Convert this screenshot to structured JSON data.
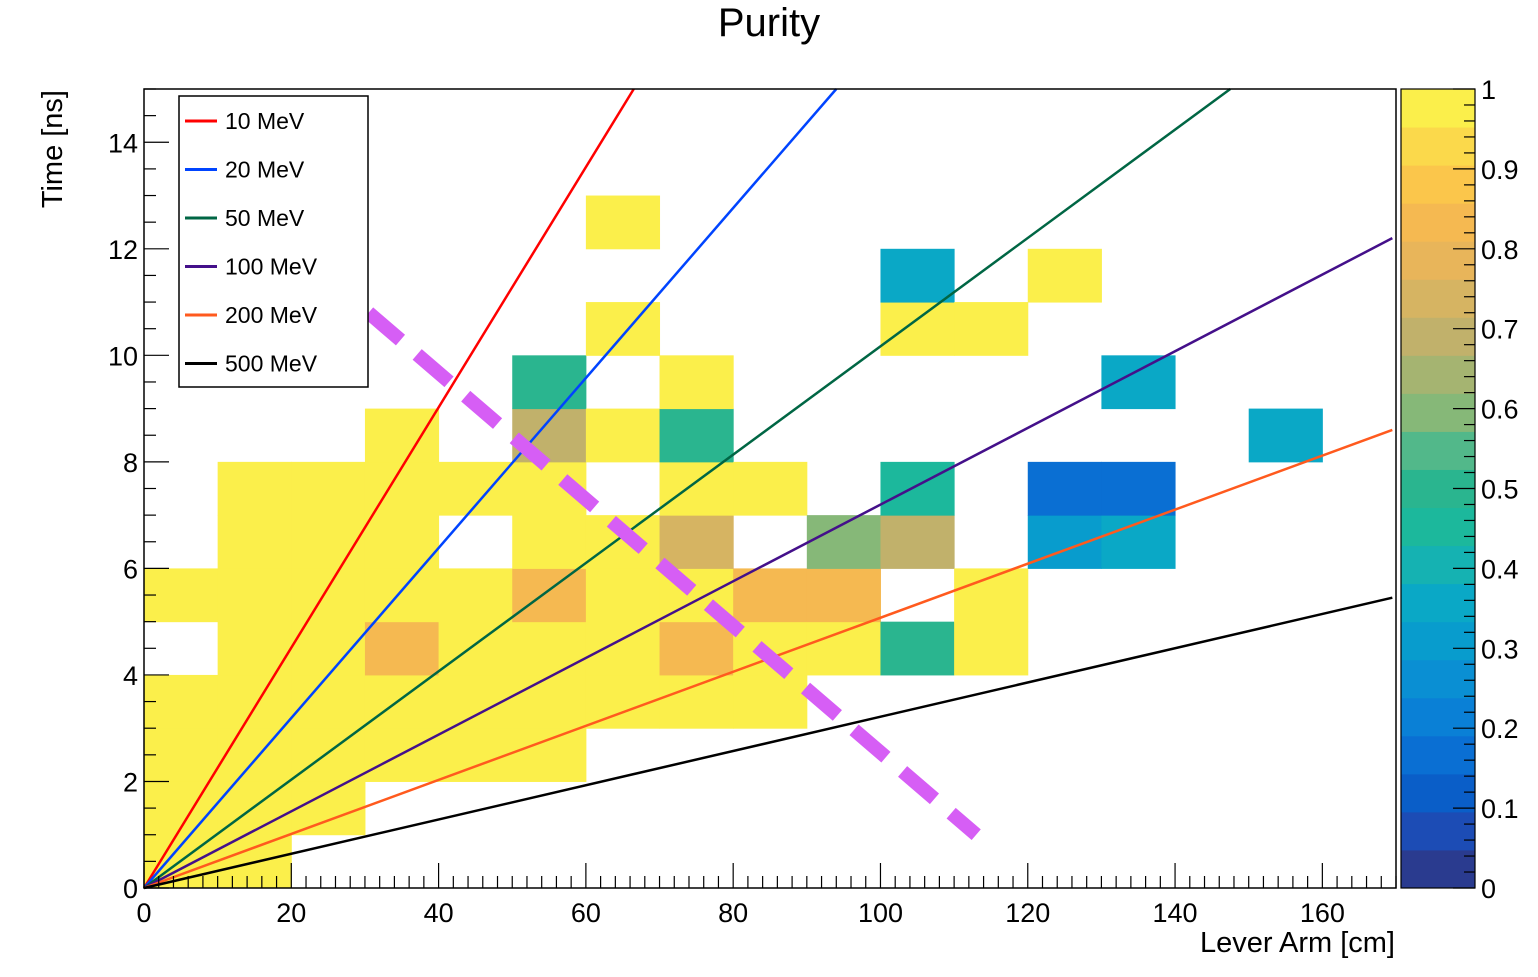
{
  "chart_data": {
    "type": "heatmap",
    "title": "Purity",
    "xlabel": "Lever Arm [cm]",
    "ylabel": "Time [ns]",
    "xlim": [
      0,
      170
    ],
    "ylim": [
      0,
      15
    ],
    "bin_width_x": 10,
    "bin_width_y": 1,
    "x_ticks": [
      0,
      20,
      40,
      60,
      80,
      100,
      120,
      140,
      160
    ],
    "y_ticks": [
      0,
      2,
      4,
      6,
      8,
      10,
      12,
      14
    ],
    "colorbar": {
      "range": [
        0,
        1
      ],
      "ticks": [
        "0",
        "0.1",
        "0.2",
        "0.3",
        "0.4",
        "0.5",
        "0.6",
        "0.7",
        "0.8",
        "0.9",
        "1"
      ],
      "palette": [
        "#2a3b8f",
        "#1c4cb5",
        "#0a5ec8",
        "#0a6fd3",
        "#0a80d6",
        "#0a8fd3",
        "#089ccd",
        "#0aa8c6",
        "#15b2b2",
        "#1cb89c",
        "#2ab58f",
        "#52b88a",
        "#86b878",
        "#a5b471",
        "#c1b16b",
        "#d6b462",
        "#e8b55a",
        "#f5b951",
        "#fbc64b",
        "#fbd94b",
        "#fbef4b"
      ]
    },
    "cells": [
      {
        "x": 0,
        "y": 0,
        "z": 1
      },
      {
        "x": 0,
        "y": 1,
        "z": 1
      },
      {
        "x": 0,
        "y": 2,
        "z": 1
      },
      {
        "x": 0,
        "y": 3,
        "z": 1
      },
      {
        "x": 0,
        "y": 5,
        "z": 1
      },
      {
        "x": 10,
        "y": 0,
        "z": 1
      },
      {
        "x": 10,
        "y": 1,
        "z": 1
      },
      {
        "x": 10,
        "y": 2,
        "z": 1
      },
      {
        "x": 10,
        "y": 3,
        "z": 1
      },
      {
        "x": 10,
        "y": 4,
        "z": 1
      },
      {
        "x": 10,
        "y": 5,
        "z": 1
      },
      {
        "x": 10,
        "y": 6,
        "z": 1
      },
      {
        "x": 10,
        "y": 7,
        "z": 1
      },
      {
        "x": 20,
        "y": 1,
        "z": 1
      },
      {
        "x": 20,
        "y": 2,
        "z": 1
      },
      {
        "x": 20,
        "y": 3,
        "z": 1
      },
      {
        "x": 20,
        "y": 4,
        "z": 1
      },
      {
        "x": 20,
        "y": 5,
        "z": 1
      },
      {
        "x": 20,
        "y": 6,
        "z": 1
      },
      {
        "x": 20,
        "y": 7,
        "z": 1
      },
      {
        "x": 30,
        "y": 2,
        "z": 1
      },
      {
        "x": 30,
        "y": 3,
        "z": 1
      },
      {
        "x": 30,
        "y": 4,
        "z": 0.86
      },
      {
        "x": 30,
        "y": 5,
        "z": 1
      },
      {
        "x": 30,
        "y": 6,
        "z": 1
      },
      {
        "x": 30,
        "y": 7,
        "z": 1
      },
      {
        "x": 30,
        "y": 8,
        "z": 1
      },
      {
        "x": 40,
        "y": 2,
        "z": 1
      },
      {
        "x": 40,
        "y": 3,
        "z": 1
      },
      {
        "x": 40,
        "y": 4,
        "z": 1
      },
      {
        "x": 40,
        "y": 5,
        "z": 1
      },
      {
        "x": 40,
        "y": 7,
        "z": 1
      },
      {
        "x": 50,
        "y": 2,
        "z": 1
      },
      {
        "x": 50,
        "y": 3,
        "z": 1
      },
      {
        "x": 50,
        "y": 4,
        "z": 1
      },
      {
        "x": 50,
        "y": 5,
        "z": 0.86
      },
      {
        "x": 50,
        "y": 6,
        "z": 1
      },
      {
        "x": 50,
        "y": 7,
        "z": 1
      },
      {
        "x": 50,
        "y": 8,
        "z": 0.68
      },
      {
        "x": 50,
        "y": 9,
        "z": 0.52
      },
      {
        "x": 60,
        "y": 3,
        "z": 1
      },
      {
        "x": 60,
        "y": 4,
        "z": 1
      },
      {
        "x": 60,
        "y": 5,
        "z": 1
      },
      {
        "x": 60,
        "y": 6,
        "z": 1
      },
      {
        "x": 60,
        "y": 8,
        "z": 1
      },
      {
        "x": 60,
        "y": 10,
        "z": 1
      },
      {
        "x": 60,
        "y": 12,
        "z": 1
      },
      {
        "x": 70,
        "y": 3,
        "z": 1
      },
      {
        "x": 70,
        "y": 4,
        "z": 0.86
      },
      {
        "x": 70,
        "y": 5,
        "z": 1
      },
      {
        "x": 70,
        "y": 6,
        "z": 0.76
      },
      {
        "x": 70,
        "y": 7,
        "z": 1
      },
      {
        "x": 70,
        "y": 8,
        "z": 0.52
      },
      {
        "x": 70,
        "y": 9,
        "z": 1
      },
      {
        "x": 80,
        "y": 3,
        "z": 1
      },
      {
        "x": 80,
        "y": 4,
        "z": 1
      },
      {
        "x": 80,
        "y": 5,
        "z": 0.86
      },
      {
        "x": 80,
        "y": 7,
        "z": 1
      },
      {
        "x": 90,
        "y": 4,
        "z": 1
      },
      {
        "x": 90,
        "y": 5,
        "z": 0.86
      },
      {
        "x": 90,
        "y": 6,
        "z": 0.62
      },
      {
        "x": 100,
        "y": 4,
        "z": 0.52
      },
      {
        "x": 100,
        "y": 6,
        "z": 0.68
      },
      {
        "x": 100,
        "y": 7,
        "z": 0.45
      },
      {
        "x": 100,
        "y": 10,
        "z": 1
      },
      {
        "x": 100,
        "y": 11,
        "z": 0.35
      },
      {
        "x": 110,
        "y": 4,
        "z": 1
      },
      {
        "x": 110,
        "y": 5,
        "z": 1
      },
      {
        "x": 110,
        "y": 10,
        "z": 1
      },
      {
        "x": 120,
        "y": 6,
        "z": 0.3
      },
      {
        "x": 120,
        "y": 7,
        "z": 0.15
      },
      {
        "x": 120,
        "y": 11,
        "z": 1
      },
      {
        "x": 130,
        "y": 6,
        "z": 0.35
      },
      {
        "x": 130,
        "y": 7,
        "z": 0.15
      },
      {
        "x": 130,
        "y": 9,
        "z": 0.33
      },
      {
        "x": 150,
        "y": 8,
        "z": 0.36
      }
    ],
    "series": [
      {
        "name": "10 MeV",
        "color": "#ff0000",
        "x": [
          0,
          66.5
        ],
        "y": [
          0,
          15
        ]
      },
      {
        "name": "20 MeV",
        "color": "#0044ff",
        "x": [
          0,
          94
        ],
        "y": [
          0,
          15
        ]
      },
      {
        "name": "50 MeV",
        "color": "#006644",
        "x": [
          0,
          147.5
        ],
        "y": [
          0,
          15
        ]
      },
      {
        "name": "100 MeV",
        "color": "#44108a",
        "x": [
          0,
          169.5
        ],
        "y": [
          0,
          12.2
        ]
      },
      {
        "name": "200 MeV",
        "color": "#ff5a1e",
        "x": [
          0,
          169.5
        ],
        "y": [
          0,
          8.6
        ]
      },
      {
        "name": "500 MeV",
        "color": "#000000",
        "x": [
          0,
          169.5
        ],
        "y": [
          0,
          5.45
        ]
      }
    ],
    "annotation_line": {
      "color": "#d65ef5",
      "x": [
        30.5,
        113
      ],
      "y": [
        10.8,
        1
      ]
    },
    "legend_placement": "top-left",
    "grid": false
  }
}
